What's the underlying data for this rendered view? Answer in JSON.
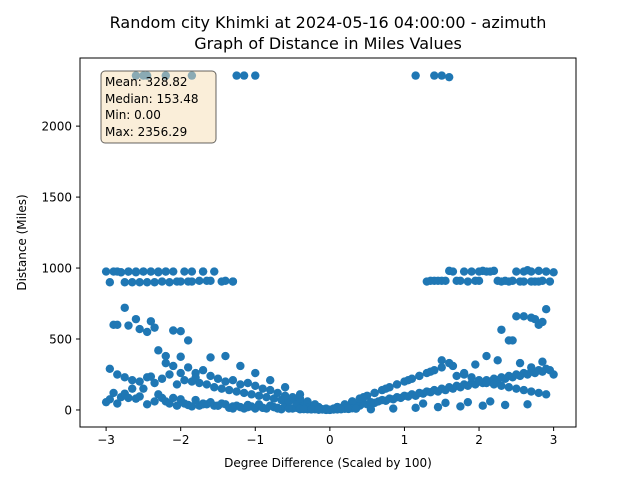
{
  "chart_data": {
    "type": "scatter",
    "title_line1": "Random city Khimki at 2024-05-16 04:00:00  - azimuth",
    "title_line2": "Graph of Distance in Miles Values",
    "xlabel": "Degree Difference (Scaled by 100)",
    "ylabel": "Distance (Miles)",
    "xlim": [
      -3.35,
      3.3
    ],
    "ylim": [
      -120,
      2480
    ],
    "xticks": [
      -3,
      -2,
      -1,
      0,
      1,
      2,
      3
    ],
    "xtick_labels": [
      "−3",
      "−2",
      "−1",
      "0",
      "1",
      "2",
      "3"
    ],
    "yticks": [
      0,
      500,
      1000,
      1500,
      2000
    ],
    "ytick_labels": [
      "0",
      "500",
      "1000",
      "1500",
      "2000"
    ],
    "point_color": "#1f77b4",
    "stats": {
      "mean": "Mean: 328.82",
      "median": "Median: 153.48",
      "min": "Min: 0.00",
      "max": "Max: 2356.29"
    },
    "series": [
      {
        "name": "distance",
        "x": [
          -2.6,
          -2.5,
          -2.45,
          -2.2,
          -1.85,
          -1.25,
          -1.15,
          -1.0,
          1.15,
          1.4,
          1.5,
          1.6,
          -3.0,
          -2.95,
          -2.85,
          -2.8,
          -2.75,
          -2.7,
          -2.65,
          -2.6,
          -2.55,
          -2.5,
          -2.45,
          -2.4,
          -2.35,
          -2.3,
          -2.25,
          -2.2,
          -2.15,
          -2.05,
          -1.95,
          -1.9,
          -1.85,
          -1.75,
          -1.7,
          -1.65,
          -1.55,
          -1.45,
          -1.3,
          -2.9,
          -2.8,
          -2.7,
          -2.6,
          -2.5,
          -2.4,
          -2.3,
          -2.2,
          -2.1,
          -2.0,
          -1.85,
          -1.7,
          -1.6,
          -1.4,
          -1.3,
          1.3,
          1.4,
          1.5,
          1.6,
          1.65,
          1.75,
          1.85,
          1.95,
          2.0,
          2.05,
          2.1,
          2.2,
          2.3,
          2.4,
          2.5,
          2.55,
          2.6,
          2.65,
          2.7,
          2.75,
          2.8,
          2.85,
          2.9,
          2.95,
          3.0,
          1.35,
          1.45,
          1.55,
          1.7,
          1.8,
          1.9,
          2.0,
          2.15,
          2.25,
          2.35,
          2.45,
          2.6,
          2.7,
          2.8,
          2.9,
          -2.9,
          -2.75,
          -2.7,
          -2.6,
          -2.4,
          -2.35,
          -2.1,
          -2.0,
          -1.9,
          -2.85,
          -2.55,
          -2.45,
          2.3,
          2.45,
          2.6,
          2.7,
          2.8,
          2.85,
          2.75,
          2.5,
          2.9,
          -3.0,
          -2.95,
          -2.9,
          -2.85,
          -2.8,
          -2.75,
          -2.7,
          -2.65,
          -2.6,
          -2.55,
          -2.5,
          -2.45,
          -2.4,
          -2.35,
          -2.3,
          -2.25,
          -2.2,
          -2.15,
          -2.1,
          -2.05,
          -2.0,
          -1.95,
          -1.9,
          -1.85,
          -1.8,
          -1.75,
          -1.7,
          -1.65,
          -1.6,
          -1.55,
          -1.5,
          -1.45,
          -1.4,
          -1.35,
          -1.3,
          -1.25,
          -1.2,
          -1.15,
          -1.1,
          -1.05,
          -1.0,
          -0.95,
          -0.9,
          -0.85,
          -0.8,
          -0.75,
          -0.7,
          -0.65,
          -0.6,
          -0.55,
          -0.5,
          -0.45,
          -0.4,
          -0.35,
          -0.3,
          -0.25,
          -0.2,
          -0.15,
          -0.1,
          -0.05,
          0.0,
          -2.95,
          -2.85,
          -2.75,
          -2.65,
          -2.55,
          -2.45,
          -2.35,
          -2.25,
          -2.15,
          -2.05,
          -1.95,
          -1.85,
          -1.75,
          -1.65,
          -1.55,
          -1.45,
          -1.35,
          -1.25,
          -1.15,
          -1.05,
          -0.95,
          -0.85,
          -0.75,
          -0.65,
          -0.55,
          -0.45,
          -0.35,
          -0.25,
          -0.15,
          -0.05,
          -2.3,
          -2.2,
          -2.1,
          -2.0,
          -1.9,
          -1.8,
          -1.7,
          -1.6,
          -1.5,
          -1.4,
          -1.3,
          -1.2,
          -1.1,
          -1.0,
          -0.9,
          -0.8,
          -0.7,
          -0.6,
          -0.5,
          -0.4,
          -0.3,
          -0.2,
          -2.2,
          -2.0,
          -1.8,
          -1.6,
          -1.4,
          -1.2,
          -1.0,
          -0.8,
          -0.6,
          -0.4,
          -1.7,
          -1.5,
          -1.3,
          -1.1,
          -0.9,
          -0.7,
          0.05,
          0.1,
          0.15,
          0.2,
          0.25,
          0.3,
          0.35,
          0.4,
          0.45,
          0.5,
          0.55,
          0.6,
          0.65,
          0.7,
          0.75,
          0.8,
          0.85,
          0.9,
          0.95,
          1.0,
          1.05,
          1.1,
          1.15,
          1.2,
          1.25,
          1.3,
          1.35,
          1.4,
          1.45,
          1.5,
          1.55,
          1.6,
          1.65,
          1.7,
          1.75,
          1.8,
          1.85,
          1.9,
          1.95,
          2.0,
          2.05,
          2.1,
          2.15,
          2.2,
          2.25,
          2.3,
          2.35,
          2.4,
          2.45,
          2.5,
          2.55,
          2.6,
          2.65,
          2.7,
          2.75,
          2.8,
          2.85,
          2.9,
          2.95,
          3.0,
          0.1,
          0.2,
          0.3,
          0.4,
          0.5,
          0.6,
          0.7,
          0.8,
          0.9,
          1.0,
          1.1,
          1.2,
          1.3,
          1.4,
          1.5,
          1.6,
          1.7,
          1.8,
          1.9,
          2.0,
          2.1,
          2.2,
          2.3,
          2.4,
          2.5,
          2.6,
          2.7,
          2.8,
          2.9,
          0.3,
          0.45,
          0.6,
          0.75,
          0.9,
          1.05,
          1.2,
          1.35,
          1.5,
          1.65,
          1.8,
          1.95,
          2.1,
          2.25,
          2.4,
          2.55,
          2.7,
          2.85,
          0.55,
          0.85,
          1.15,
          1.45,
          1.75,
          2.05,
          2.35,
          2.65,
          1.25,
          1.55,
          1.85,
          2.15,
          -0.4,
          -0.3,
          -0.2,
          -0.1,
          0.0,
          0.1,
          0.2,
          0.3,
          -0.35,
          -0.25,
          -0.15,
          0.05,
          0.15,
          0.25,
          0.35
        ],
        "y": [
          2356,
          2356,
          2356,
          2356,
          2356,
          2356,
          2356,
          2356,
          2356,
          2356,
          2356,
          2345,
          975,
          900,
          975,
          970,
          900,
          975,
          900,
          975,
          900,
          975,
          900,
          975,
          900,
          970,
          905,
          975,
          900,
          905,
          975,
          905,
          975,
          910,
          975,
          910,
          975,
          905,
          905,
          975,
          970,
          975,
          970,
          975,
          975,
          975,
          975,
          975,
          905,
          905,
          975,
          910,
          910,
          905,
          905,
          910,
          910,
          980,
          975,
          910,
          905,
          910,
          975,
          980,
          975,
          980,
          905,
          905,
          975,
          905,
          975,
          985,
          975,
          905,
          980,
          910,
          975,
          905,
          970,
          910,
          910,
          910,
          910,
          975,
          975,
          910,
          975,
          910,
          910,
          910,
          905,
          905,
          905,
          975,
          600,
          720,
          595,
          640,
          625,
          580,
          560,
          555,
          490,
          600,
          570,
          550,
          565,
          490,
          660,
          650,
          600,
          620,
          640,
          660,
          710,
          55,
          75,
          120,
          45,
          90,
          115,
          85,
          150,
          80,
          95,
          150,
          40,
          235,
          60,
          110,
          85,
          60,
          45,
          85,
          30,
          75,
          45,
          35,
          25,
          70,
          30,
          45,
          40,
          55,
          30,
          30,
          45,
          40,
          15,
          25,
          30,
          20,
          10,
          35,
          25,
          10,
          40,
          15,
          10,
          30,
          20,
          15,
          5,
          30,
          10,
          10,
          15,
          5,
          10,
          5,
          5,
          10,
          2,
          5,
          0,
          0,
          290,
          250,
          230,
          210,
          200,
          230,
          190,
          220,
          250,
          180,
          210,
          200,
          190,
          180,
          160,
          150,
          140,
          130,
          120,
          110,
          100,
          90,
          80,
          70,
          60,
          50,
          40,
          30,
          20,
          10,
          420,
          330,
          310,
          260,
          300,
          260,
          280,
          240,
          220,
          200,
          210,
          180,
          190,
          170,
          150,
          140,
          120,
          100,
          90,
          80,
          60,
          40,
          380,
          375,
          230,
          370,
          380,
          310,
          260,
          210,
          160,
          110,
          40,
          30,
          10,
          20,
          15,
          10,
          10,
          20,
          15,
          25,
          30,
          20,
          35,
          30,
          45,
          40,
          55,
          50,
          60,
          70,
          65,
          80,
          75,
          90,
          85,
          100,
          95,
          110,
          100,
          120,
          115,
          130,
          125,
          140,
          130,
          150,
          140,
          160,
          150,
          170,
          160,
          180,
          170,
          190,
          180,
          200,
          190,
          210,
          200,
          220,
          210,
          230,
          220,
          240,
          230,
          250,
          240,
          260,
          250,
          270,
          260,
          280,
          270,
          290,
          280,
          250,
          20,
          40,
          60,
          80,
          100,
          120,
          140,
          160,
          180,
          200,
          220,
          240,
          260,
          280,
          300,
          330,
          240,
          250,
          230,
          210,
          190,
          180,
          170,
          160,
          150,
          140,
          130,
          120,
          110,
          60,
          90,
          120,
          150,
          180,
          210,
          240,
          270,
          350,
          310,
          260,
          320,
          380,
          350,
          490,
          330,
          300,
          340,
          5,
          10,
          15,
          20,
          25,
          30,
          35,
          40,
          45,
          50,
          55,
          60,
          10,
          15,
          5,
          3,
          2,
          4,
          8,
          12,
          6,
          4,
          2,
          3,
          5,
          7,
          9
        ]
      }
    ]
  }
}
